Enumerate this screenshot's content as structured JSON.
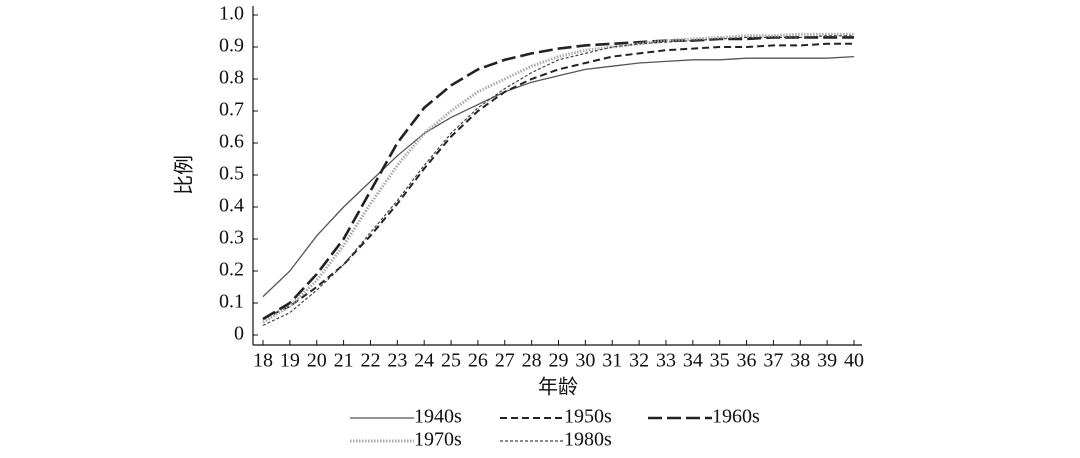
{
  "chart_data": {
    "type": "line",
    "xlabel": "年龄",
    "ylabel": "比例",
    "x": [
      18,
      19,
      20,
      21,
      22,
      23,
      24,
      25,
      26,
      27,
      28,
      29,
      30,
      31,
      32,
      33,
      34,
      35,
      36,
      37,
      38,
      39,
      40
    ],
    "xlim": [
      18,
      40
    ],
    "xticks": [
      18,
      19,
      20,
      21,
      22,
      23,
      24,
      25,
      26,
      27,
      28,
      29,
      30,
      31,
      32,
      33,
      34,
      35,
      36,
      37,
      38,
      39,
      40
    ],
    "ylim": [
      0,
      1
    ],
    "yticks": [
      0,
      0.1,
      0.2,
      0.3,
      0.4,
      0.5,
      0.6,
      0.7,
      0.8,
      0.9,
      {
        "value": 1,
        "label": "1.0"
      }
    ],
    "grid": false,
    "legend": "bottom",
    "series": [
      {
        "name": "1940s",
        "color": "#555555",
        "dash": "none",
        "width": 1.3,
        "values": [
          0.12,
          0.2,
          0.31,
          0.4,
          0.48,
          0.56,
          0.63,
          0.68,
          0.72,
          0.76,
          0.79,
          0.81,
          0.83,
          0.84,
          0.85,
          0.855,
          0.86,
          0.86,
          0.865,
          0.865,
          0.865,
          0.865,
          0.87
        ]
      },
      {
        "name": "1950s",
        "color": "#222222",
        "dash": "7,4",
        "width": 2,
        "values": [
          0.05,
          0.09,
          0.15,
          0.22,
          0.31,
          0.41,
          0.52,
          0.62,
          0.7,
          0.76,
          0.8,
          0.83,
          0.85,
          0.87,
          0.88,
          0.89,
          0.895,
          0.9,
          0.9,
          0.905,
          0.905,
          0.91,
          0.91
        ]
      },
      {
        "name": "1960s",
        "color": "#222222",
        "dash": "14,5",
        "width": 2.6,
        "values": [
          0.05,
          0.1,
          0.19,
          0.3,
          0.45,
          0.6,
          0.71,
          0.78,
          0.83,
          0.86,
          0.88,
          0.895,
          0.905,
          0.91,
          0.915,
          0.92,
          0.92,
          0.925,
          0.925,
          0.93,
          0.93,
          0.93,
          0.93
        ]
      },
      {
        "name": "1970s",
        "color": "#aaaaaa",
        "dash": "1.5,1.5",
        "width": 3,
        "values": [
          0.04,
          0.09,
          0.17,
          0.28,
          0.41,
          0.53,
          0.63,
          0.7,
          0.76,
          0.8,
          0.84,
          0.87,
          0.89,
          0.9,
          0.91,
          0.92,
          0.925,
          0.93,
          0.935,
          0.935,
          0.94,
          0.94,
          0.94
        ]
      },
      {
        "name": "1980s",
        "color": "#444444",
        "dash": "3,2",
        "width": 1.2,
        "values": [
          0.03,
          0.07,
          0.14,
          0.22,
          0.32,
          0.42,
          0.53,
          0.63,
          0.71,
          0.77,
          0.82,
          0.86,
          0.88,
          0.9,
          0.91,
          0.915,
          0.92,
          0.925,
          0.93,
          0.93,
          0.93,
          0.935,
          0.935
        ]
      }
    ]
  }
}
